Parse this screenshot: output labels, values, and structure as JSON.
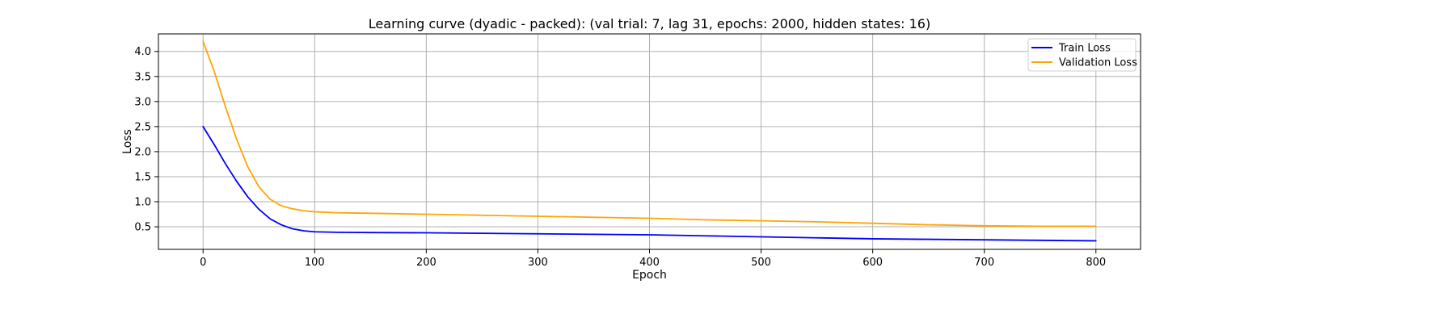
{
  "chart_data": {
    "type": "line",
    "title": "Learning curve (dyadic - packed): (val trial: 7, lag 31, epochs: 2000, hidden states: 16)",
    "xlabel": "Epoch",
    "ylabel": "Loss",
    "xlim": [
      -40,
      840
    ],
    "ylim": [
      0.05,
      4.35
    ],
    "xticks": [
      0,
      100,
      200,
      300,
      400,
      500,
      600,
      700,
      800
    ],
    "yticks": [
      0.5,
      1.0,
      1.5,
      2.0,
      2.5,
      3.0,
      3.5,
      4.0
    ],
    "grid": true,
    "legend_position": "top-right",
    "series": [
      {
        "name": "Train Loss",
        "color": "#0000ff",
        "x": [
          0,
          10,
          20,
          30,
          40,
          50,
          60,
          70,
          80,
          90,
          100,
          120,
          150,
          200,
          250,
          300,
          350,
          400,
          450,
          500,
          550,
          600,
          650,
          700,
          750,
          800
        ],
        "y": [
          2.5,
          2.14,
          1.76,
          1.41,
          1.1,
          0.85,
          0.66,
          0.54,
          0.46,
          0.42,
          0.4,
          0.39,
          0.385,
          0.38,
          0.37,
          0.36,
          0.35,
          0.34,
          0.32,
          0.3,
          0.28,
          0.26,
          0.25,
          0.24,
          0.23,
          0.22
        ]
      },
      {
        "name": "Validation Loss",
        "color": "#ffa500",
        "x": [
          0,
          10,
          20,
          30,
          40,
          50,
          60,
          70,
          80,
          90,
          100,
          120,
          150,
          200,
          250,
          300,
          350,
          400,
          450,
          500,
          550,
          600,
          650,
          700,
          750,
          800
        ],
        "y": [
          4.2,
          3.6,
          2.9,
          2.25,
          1.7,
          1.3,
          1.05,
          0.92,
          0.86,
          0.82,
          0.8,
          0.78,
          0.77,
          0.75,
          0.73,
          0.71,
          0.69,
          0.67,
          0.64,
          0.62,
          0.6,
          0.57,
          0.54,
          0.52,
          0.51,
          0.51
        ]
      }
    ]
  }
}
